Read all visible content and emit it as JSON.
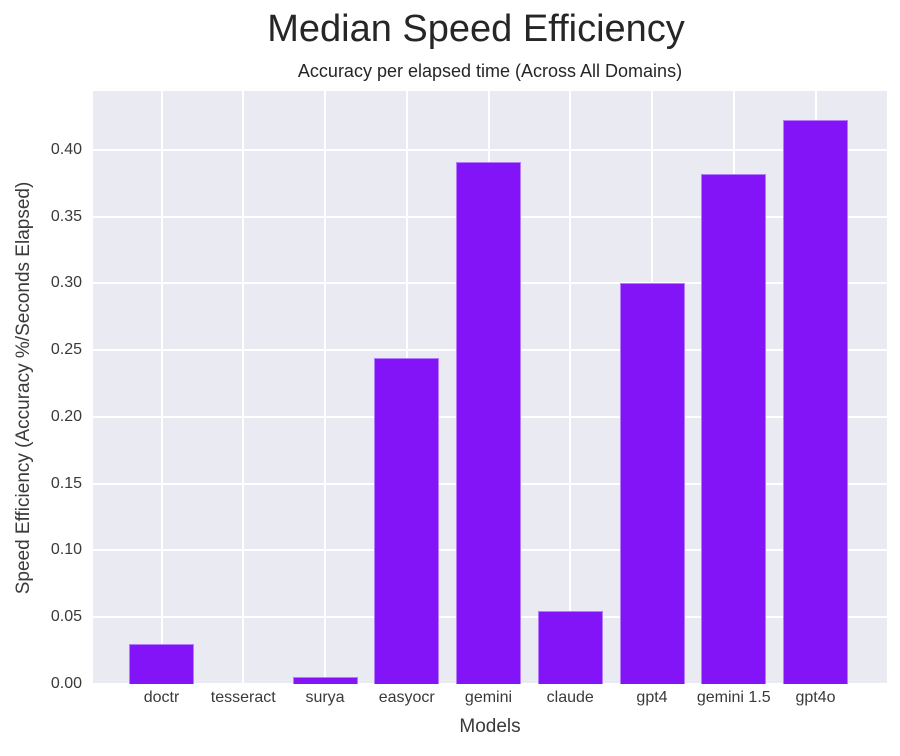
{
  "chart_data": {
    "type": "bar",
    "title": "Median Speed Efficiency",
    "subtitle": "Accuracy per elapsed time (Across All Domains)",
    "xlabel": "Models",
    "ylabel": "Speed Efficiency (Accuracy %/Seconds Elapsed)",
    "categories": [
      "doctr",
      "tesseract",
      "surya",
      "easyocr",
      "gemini",
      "claude",
      "gpt4",
      "gemini 1.5",
      "gpt4o"
    ],
    "values": [
      0.03,
      0.0,
      0.005,
      0.244,
      0.391,
      0.055,
      0.3,
      0.382,
      0.422
    ],
    "ylim": [
      0.0,
      0.444
    ],
    "yticks": [
      "0.00",
      "0.05",
      "0.10",
      "0.15",
      "0.20",
      "0.25",
      "0.30",
      "0.35",
      "0.40"
    ],
    "ytick_values": [
      0.0,
      0.05,
      0.1,
      0.15,
      0.2,
      0.25,
      0.3,
      0.35,
      0.4
    ],
    "grid": true,
    "legend": null,
    "bar_color": "#8314f8",
    "background_color": "#eaeaf2"
  }
}
